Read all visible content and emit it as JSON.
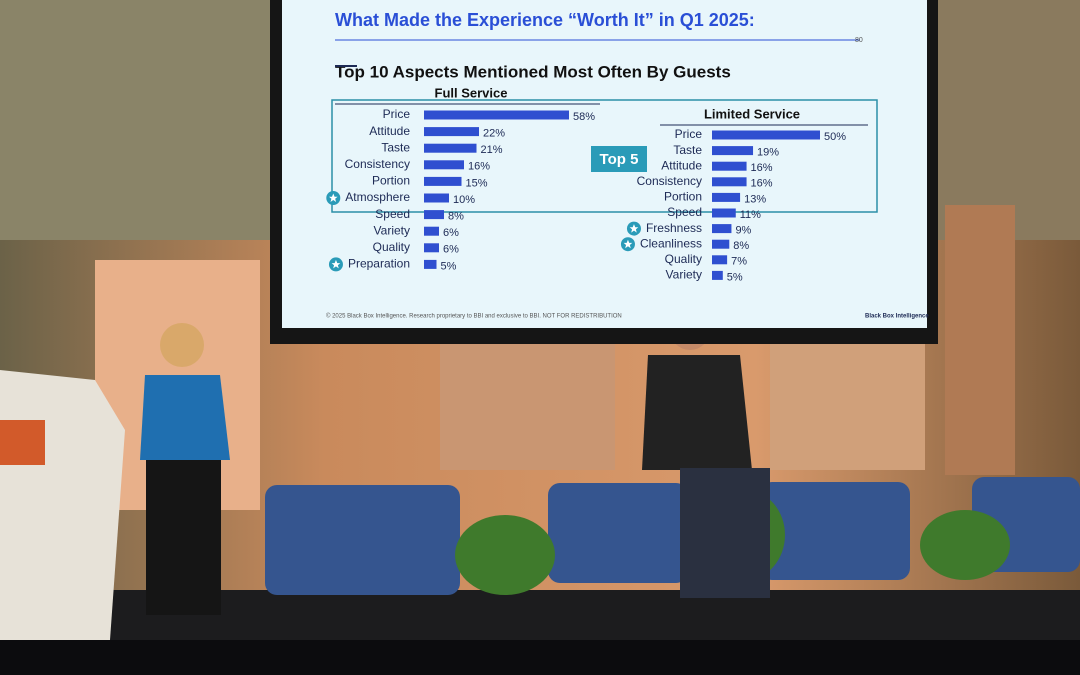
{
  "slide": {
    "title": "What Made the Experience “Worth It” in Q1 2025:",
    "subtitle": "Top 10 Aspects Mentioned Most Often By Guests",
    "page_number": "80",
    "callout": "Top 5",
    "footer": "© 2025 Black Box Intelligence. Research proprietary to BBI and exclusive to BBI. NOT FOR REDISTRIBUTION",
    "logo": "Black Box Intelligence"
  },
  "chart_data": [
    {
      "type": "bar",
      "title": "Full Service",
      "categories": [
        "Price",
        "Attitude",
        "Taste",
        "Consistency",
        "Portion",
        "Atmosphere",
        "Speed",
        "Variety",
        "Quality",
        "Preparation"
      ],
      "values": [
        58,
        22,
        21,
        16,
        15,
        10,
        8,
        6,
        6,
        5
      ],
      "value_labels": [
        "58%",
        "22%",
        "21%",
        "16%",
        "15%",
        "10%",
        "8%",
        "6%",
        "6%",
        "5%"
      ],
      "starred": [
        false,
        false,
        false,
        false,
        false,
        true,
        false,
        false,
        false,
        true
      ],
      "color": "#2f4fd0"
    },
    {
      "type": "bar",
      "title": "Limited Service",
      "categories": [
        "Price",
        "Taste",
        "Attitude",
        "Consistency",
        "Portion",
        "Speed",
        "Freshness",
        "Cleanliness",
        "Quality",
        "Variety"
      ],
      "values": [
        50,
        19,
        16,
        16,
        13,
        11,
        9,
        8,
        7,
        5
      ],
      "value_labels": [
        "50%",
        "19%",
        "16%",
        "16%",
        "13%",
        "11%",
        "9%",
        "8%",
        "7%",
        "5%"
      ],
      "starred": [
        false,
        false,
        false,
        false,
        false,
        false,
        true,
        true,
        false,
        false
      ],
      "color": "#2f4fd0"
    }
  ]
}
